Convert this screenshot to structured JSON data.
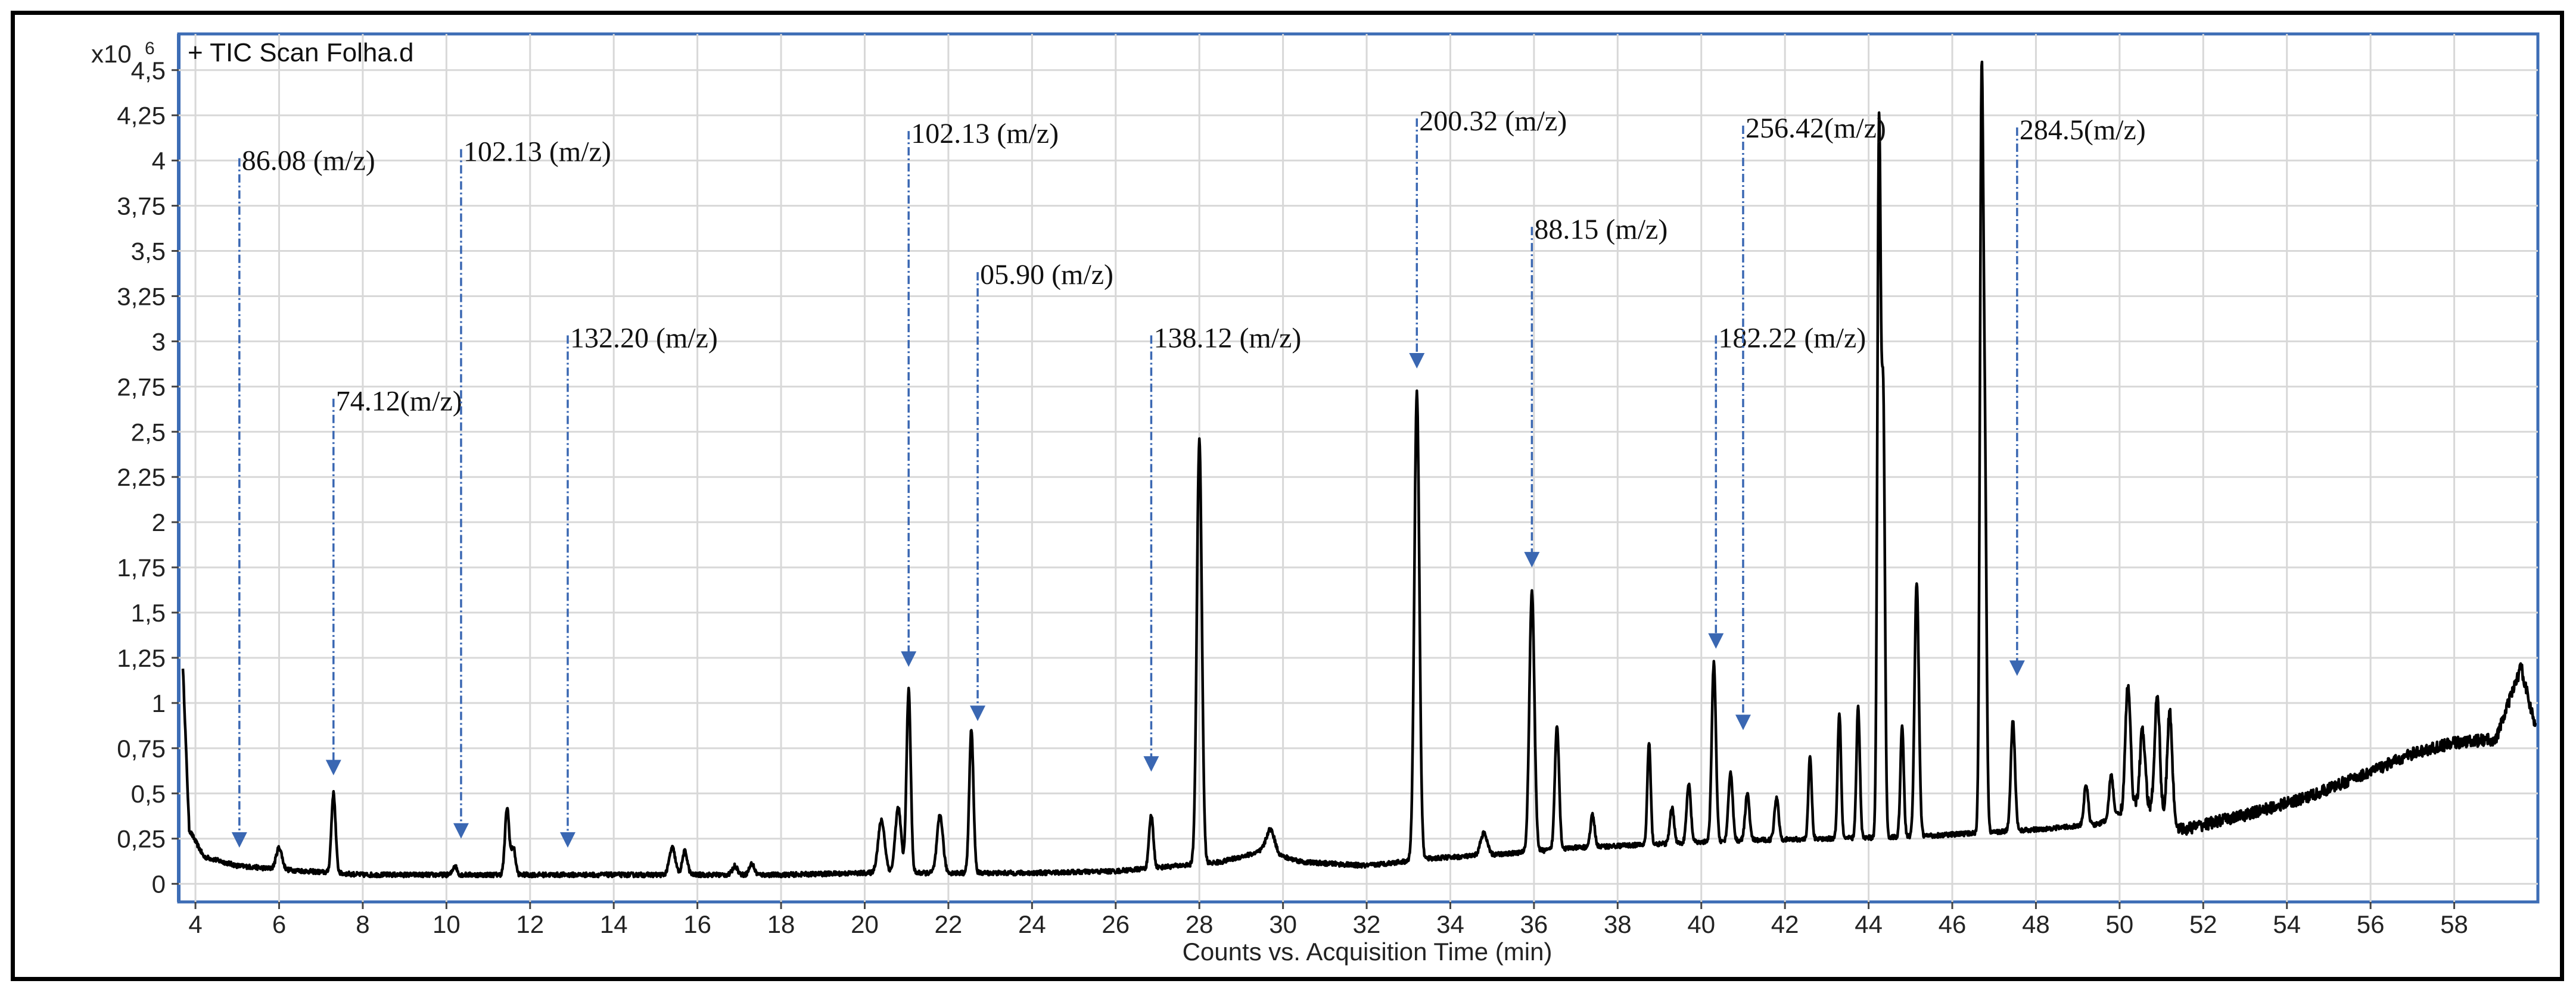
{
  "chart_data": {
    "type": "line",
    "title": "+ TIC Scan Folha.d",
    "xlabel": "Counts vs. Acquisition Time (min)",
    "y_multiplier": "x10",
    "y_exponent": "6",
    "xlim": [
      3.6,
      60.0
    ],
    "ylim": [
      -0.1,
      4.7
    ],
    "x_ticks": [
      4,
      6,
      8,
      10,
      12,
      14,
      16,
      18,
      20,
      22,
      24,
      26,
      28,
      30,
      32,
      34,
      36,
      38,
      40,
      42,
      44,
      46,
      48,
      50,
      52,
      54,
      56,
      58
    ],
    "y_ticks": [
      {
        "v": 0,
        "label": "0"
      },
      {
        "v": 0.25,
        "label": "0,25"
      },
      {
        "v": 0.5,
        "label": "0,5"
      },
      {
        "v": 0.75,
        "label": "0,75"
      },
      {
        "v": 1,
        "label": "1"
      },
      {
        "v": 1.25,
        "label": "1,25"
      },
      {
        "v": 1.5,
        "label": "1,5"
      },
      {
        "v": 1.75,
        "label": "1,75"
      },
      {
        "v": 2,
        "label": "2"
      },
      {
        "v": 2.25,
        "label": "2,25"
      },
      {
        "v": 2.5,
        "label": "2,5"
      },
      {
        "v": 2.75,
        "label": "2,75"
      },
      {
        "v": 3,
        "label": "3"
      },
      {
        "v": 3.25,
        "label": "3,25"
      },
      {
        "v": 3.5,
        "label": "3,5"
      },
      {
        "v": 3.75,
        "label": "3,75"
      },
      {
        "v": 4,
        "label": "4"
      },
      {
        "v": 4.25,
        "label": "4,25"
      },
      {
        "v": 4.5,
        "label": "4,5"
      }
    ],
    "grid": true,
    "series": [
      {
        "baseline": [
          [
            3.7,
            1.2
          ],
          [
            3.85,
            0.3
          ],
          [
            4.2,
            0.15
          ],
          [
            5,
            0.1
          ],
          [
            6,
            0.08
          ],
          [
            8,
            0.05
          ],
          [
            10,
            0.05
          ],
          [
            12,
            0.05
          ],
          [
            14,
            0.05
          ],
          [
            16,
            0.05
          ],
          [
            18,
            0.05
          ],
          [
            20,
            0.06
          ],
          [
            22,
            0.06
          ],
          [
            24,
            0.06
          ],
          [
            26,
            0.07
          ],
          [
            27.5,
            0.1
          ],
          [
            28.5,
            0.12
          ],
          [
            29.5,
            0.18
          ],
          [
            30.5,
            0.12
          ],
          [
            32,
            0.1
          ],
          [
            33.5,
            0.14
          ],
          [
            35,
            0.16
          ],
          [
            37,
            0.2
          ],
          [
            39,
            0.22
          ],
          [
            41,
            0.24
          ],
          [
            43,
            0.25
          ],
          [
            45,
            0.26
          ],
          [
            46.5,
            0.28
          ],
          [
            48,
            0.3
          ],
          [
            49.5,
            0.33
          ],
          [
            50.5,
            0.45
          ],
          [
            51.5,
            0.3
          ],
          [
            53,
            0.38
          ],
          [
            54.5,
            0.48
          ],
          [
            56,
            0.62
          ],
          [
            57,
            0.72
          ],
          [
            58,
            0.78
          ],
          [
            59,
            0.8
          ],
          [
            59.6,
            1.2
          ],
          [
            59.9,
            0.9
          ]
        ],
        "peaks": [
          [
            6.0,
            0.2,
            0.07
          ],
          [
            7.3,
            0.5,
            0.05
          ],
          [
            10.2,
            0.1,
            0.05
          ],
          [
            11.45,
            0.42,
            0.05
          ],
          [
            11.6,
            0.2,
            0.05
          ],
          [
            15.4,
            0.2,
            0.07
          ],
          [
            15.7,
            0.18,
            0.06
          ],
          [
            16.9,
            0.1,
            0.06
          ],
          [
            17.3,
            0.11,
            0.06
          ],
          [
            20.4,
            0.35,
            0.08
          ],
          [
            20.8,
            0.42,
            0.07
          ],
          [
            21.05,
            1.07,
            0.05
          ],
          [
            21.8,
            0.38,
            0.07
          ],
          [
            22.55,
            0.85,
            0.05
          ],
          [
            26.85,
            0.38,
            0.05
          ],
          [
            28.0,
            2.45,
            0.06
          ],
          [
            29.7,
            0.3,
            0.1
          ],
          [
            33.2,
            2.72,
            0.06
          ],
          [
            34.8,
            0.28,
            0.08
          ],
          [
            35.95,
            1.62,
            0.06
          ],
          [
            36.55,
            0.88,
            0.05
          ],
          [
            37.4,
            0.38,
            0.05
          ],
          [
            38.75,
            0.78,
            0.04
          ],
          [
            39.3,
            0.42,
            0.05
          ],
          [
            39.7,
            0.55,
            0.05
          ],
          [
            40.3,
            1.22,
            0.05
          ],
          [
            40.7,
            0.62,
            0.05
          ],
          [
            41.1,
            0.5,
            0.05
          ],
          [
            41.8,
            0.48,
            0.05
          ],
          [
            42.6,
            0.7,
            0.04
          ],
          [
            43.3,
            0.95,
            0.04
          ],
          [
            43.75,
            0.98,
            0.04
          ],
          [
            44.25,
            4.15,
            0.04
          ],
          [
            44.35,
            2.62,
            0.04
          ],
          [
            44.8,
            0.88,
            0.04
          ],
          [
            45.15,
            1.67,
            0.05
          ],
          [
            46.7,
            4.25,
            0.04
          ],
          [
            46.78,
            2.2,
            0.04
          ],
          [
            47.45,
            0.9,
            0.05
          ],
          [
            49.2,
            0.55,
            0.05
          ],
          [
            49.8,
            0.6,
            0.05
          ],
          [
            50.2,
            1.1,
            0.06
          ],
          [
            50.55,
            0.85,
            0.06
          ],
          [
            50.9,
            1.05,
            0.06
          ],
          [
            51.2,
            0.95,
            0.06
          ]
        ]
      }
    ],
    "annotations": [
      {
        "label": "86.08 (m/z)",
        "x": 5.05,
        "text_y": 3.98,
        "tip_y": 0.2
      },
      {
        "label": "74.12(m/z)",
        "x": 7.3,
        "text_y": 2.65,
        "tip_y": 0.6
      },
      {
        "label": "102.13 (m/z)",
        "x": 10.35,
        "text_y": 4.03,
        "tip_y": 0.25
      },
      {
        "label": "132.20 (m/z)",
        "x": 12.9,
        "text_y": 3.0,
        "tip_y": 0.2
      },
      {
        "label": "102.13 (m/z)",
        "x": 21.05,
        "text_y": 4.13,
        "tip_y": 1.2
      },
      {
        "label": "05.90 (m/z)",
        "x": 22.7,
        "text_y": 3.35,
        "tip_y": 0.9
      },
      {
        "label": "138.12 (m/z)",
        "x": 26.85,
        "text_y": 3.0,
        "tip_y": 0.62
      },
      {
        "label": "200.32 (m/z)",
        "x": 33.2,
        "text_y": 4.2,
        "tip_y": 2.85
      },
      {
        "label": "88.15 (m/z)",
        "x": 35.95,
        "text_y": 3.6,
        "tip_y": 1.75
      },
      {
        "label": "182.22 (m/z)",
        "x": 40.35,
        "text_y": 3.0,
        "tip_y": 1.3
      },
      {
        "label": "256.42(m/z)",
        "x": 41.0,
        "text_y": 4.16,
        "tip_y": 0.85
      },
      {
        "label": "284.5(m/z)",
        "x": 47.55,
        "text_y": 4.15,
        "tip_y": 1.15
      }
    ],
    "colors": {
      "trace": "#000000",
      "arrow": "#3a67b2",
      "grid": "#d8d8d8",
      "border": "#3d6db5"
    }
  }
}
